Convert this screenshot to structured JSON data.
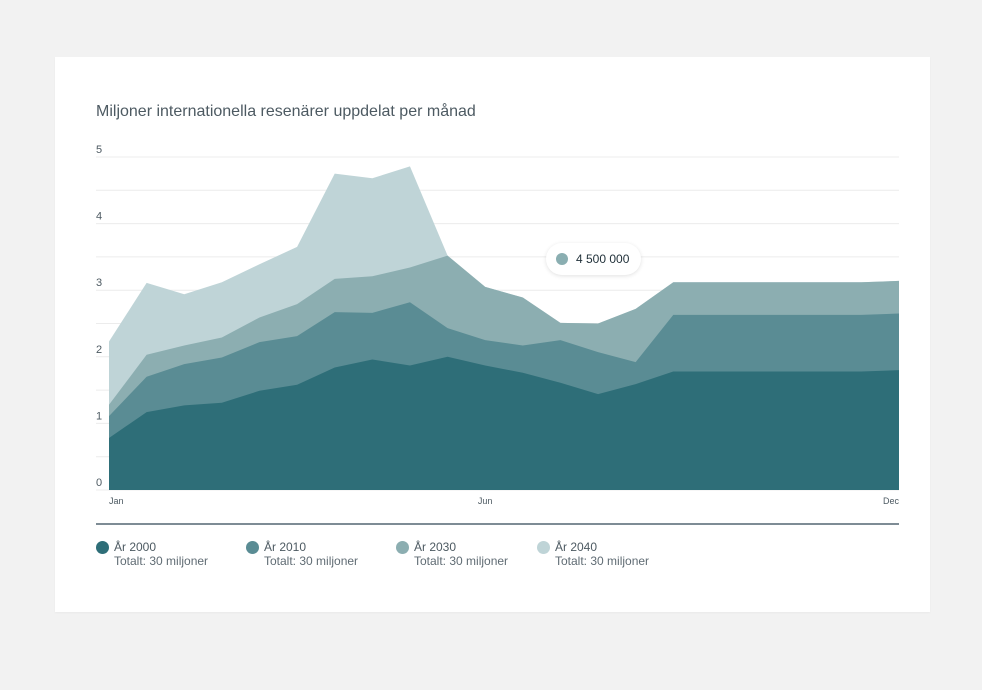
{
  "card": {
    "title": "Miljoner internationella resenärer uppdelat per månad"
  },
  "tooltip": {
    "value": "4 500 000",
    "color": "#8aaeb1"
  },
  "chart_data": {
    "type": "area",
    "stacked": true,
    "title": "Miljoner internationella resenärer uppdelat per månad",
    "x": [
      0,
      1,
      2,
      3,
      4,
      5,
      6,
      7,
      8,
      9,
      10,
      11,
      12,
      13,
      14,
      15,
      16,
      17,
      18,
      19,
      20,
      21
    ],
    "x_tick_labels": [
      {
        "x": 0,
        "label": "Jan"
      },
      {
        "x": 10,
        "label": "Jun"
      },
      {
        "x": 21,
        "label": "Dec"
      }
    ],
    "ylim": [
      0,
      5
    ],
    "y_ticks": [
      "0",
      "1",
      "2",
      "3",
      "4",
      "5"
    ],
    "grid": true,
    "legend_position": "bottom",
    "series": [
      {
        "name": "År 2000",
        "total": "Totalt: 30 miljoner",
        "color": "#2e6e78",
        "values": [
          0.78,
          1.17,
          1.27,
          1.31,
          1.49,
          1.58,
          1.84,
          1.96,
          1.87,
          2.0,
          1.87,
          1.76,
          1.61,
          1.44,
          1.59,
          1.78,
          1.78,
          1.78,
          1.78,
          1.78,
          1.78,
          1.8
        ]
      },
      {
        "name": "År 2010",
        "total": "Totalt: 30 miljoner",
        "color": "#5a8c94",
        "values": [
          0.33,
          0.53,
          0.62,
          0.68,
          0.73,
          0.73,
          0.83,
          0.7,
          0.95,
          0.43,
          0.38,
          0.41,
          0.64,
          0.63,
          0.33,
          0.85,
          0.85,
          0.85,
          0.85,
          0.85,
          0.85,
          0.85
        ]
      },
      {
        "name": "År 2030",
        "total": "Totalt: 30 miljoner",
        "color": "#8caeb1",
        "values": [
          0.17,
          0.33,
          0.28,
          0.3,
          0.37,
          0.48,
          0.5,
          0.55,
          0.52,
          1.09,
          0.8,
          0.72,
          0.26,
          0.43,
          0.8,
          0.49,
          0.49,
          0.49,
          0.49,
          0.49,
          0.49,
          0.49
        ]
      },
      {
        "name": "År 2040",
        "total": "Totalt: 30 miljoner",
        "color": "#bfd4d7",
        "values": [
          0.95,
          1.08,
          0.77,
          0.83,
          0.8,
          0.86,
          1.58,
          1.47,
          1.52,
          0.0,
          0.0,
          0.0,
          0.0,
          0.0,
          0.0,
          0.0,
          0.0,
          0.0,
          0.0,
          0.0,
          0.0,
          0.0
        ]
      }
    ]
  }
}
